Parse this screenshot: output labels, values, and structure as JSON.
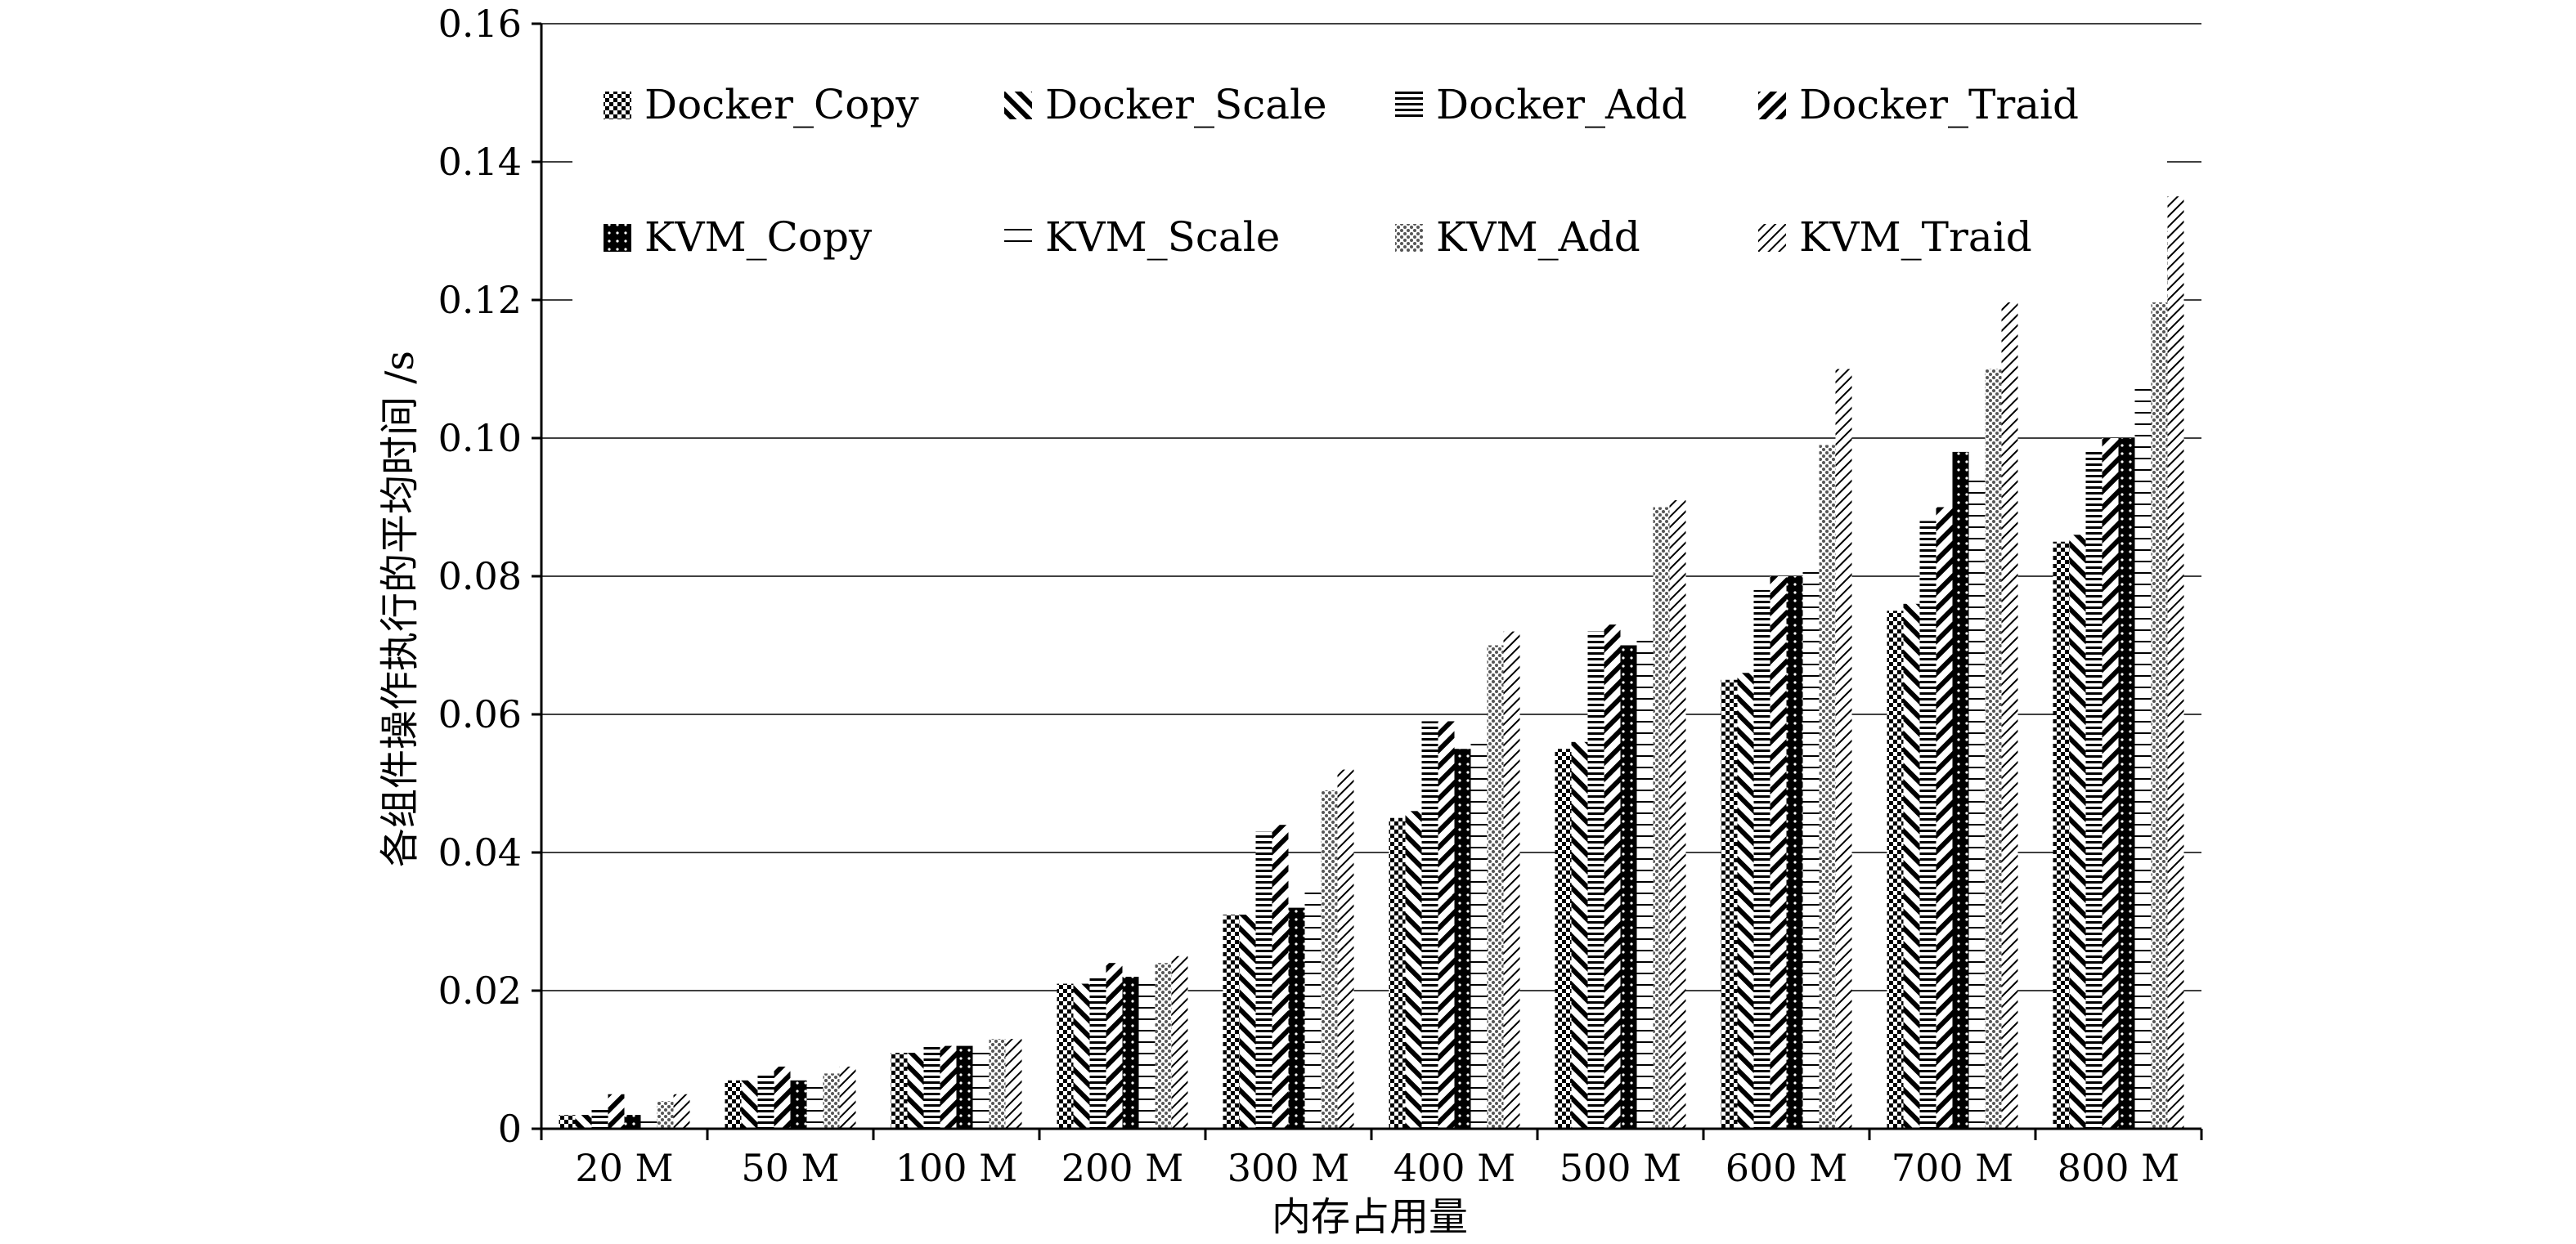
{
  "chart_data": {
    "type": "bar",
    "xlabel": "内存占用量",
    "ylabel": "各组件操作执行的平均时间 /s",
    "ylim": [
      0,
      0.16
    ],
    "yticks": [
      0,
      0.02,
      0.04,
      0.06,
      0.08,
      0.1,
      0.12,
      0.14,
      0.16
    ],
    "ytick_labels": [
      "0",
      "0.02",
      "0.04",
      "0.06",
      "0.08",
      "0.10",
      "0.12",
      "0.14",
      "0.16"
    ],
    "grid": "horizontal",
    "legend_position": "top-left, inside plot, 2 rows x 4 columns",
    "categories": [
      "20 M",
      "50 M",
      "100 M",
      "200 M",
      "300 M",
      "400 M",
      "500 M",
      "600 M",
      "700 M",
      "800 M"
    ],
    "series": [
      {
        "name": "Docker_Copy",
        "pattern": "checker",
        "values": [
          0.002,
          0.007,
          0.011,
          0.021,
          0.031,
          0.045,
          0.055,
          0.065,
          0.075,
          0.085
        ]
      },
      {
        "name": "Docker_Scale",
        "pattern": "diag-back",
        "values": [
          0.002,
          0.007,
          0.011,
          0.021,
          0.031,
          0.046,
          0.056,
          0.066,
          0.076,
          0.086
        ]
      },
      {
        "name": "Docker_Add",
        "pattern": "hlines-dense",
        "values": [
          0.003,
          0.008,
          0.012,
          0.022,
          0.043,
          0.059,
          0.072,
          0.078,
          0.088,
          0.098
        ]
      },
      {
        "name": "Docker_Traid",
        "pattern": "diag-fwd",
        "values": [
          0.005,
          0.009,
          0.012,
          0.024,
          0.044,
          0.059,
          0.073,
          0.08,
          0.09,
          0.1
        ]
      },
      {
        "name": "KVM_Copy",
        "pattern": "black-dots",
        "values": [
          0.002,
          0.007,
          0.012,
          0.022,
          0.032,
          0.055,
          0.07,
          0.08,
          0.098,
          0.1
        ]
      },
      {
        "name": "KVM_Scale",
        "pattern": "hlines-sparse",
        "values": [
          0.002,
          0.007,
          0.012,
          0.022,
          0.035,
          0.056,
          0.072,
          0.081,
          0.094,
          0.108
        ]
      },
      {
        "name": "KVM_Add",
        "pattern": "gray-dots",
        "values": [
          0.004,
          0.008,
          0.013,
          0.024,
          0.049,
          0.07,
          0.09,
          0.099,
          0.11,
          0.13
        ]
      },
      {
        "name": "KVM_Traid",
        "pattern": "diag-thin",
        "values": [
          0.005,
          0.009,
          0.013,
          0.025,
          0.052,
          0.072,
          0.091,
          0.11,
          0.12,
          0.135
        ]
      }
    ],
    "legend_labels": [
      "Docker_Copy",
      "Docker_Scale",
      "Docker_Add",
      "Docker_Traid",
      "KVM_Copy",
      "KVM_Scale",
      "KVM_Add",
      "KVM_Traid"
    ]
  }
}
